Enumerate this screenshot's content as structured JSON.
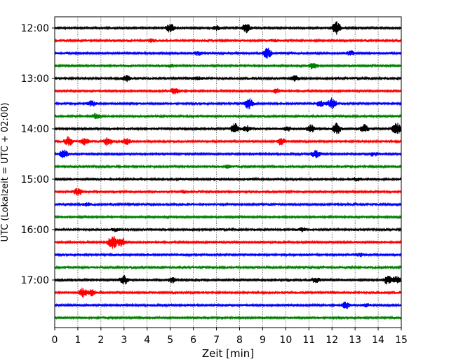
{
  "chart_data": {
    "type": "line",
    "subtype": "helicorder",
    "xlabel": "Zeit  [min]",
    "ylabel": "UTC (Lokalzeit = UTC + 02:00)",
    "xlim": [
      0,
      15
    ],
    "x_ticks": [
      0,
      1,
      2,
      3,
      4,
      5,
      6,
      7,
      8,
      9,
      10,
      11,
      12,
      13,
      14,
      15
    ],
    "y_ticks": [
      "12:00",
      "13:00",
      "14:00",
      "15:00",
      "16:00",
      "17:00"
    ],
    "trace_interval_min": 15,
    "trace_count": 24,
    "first_trace_time": "12:00",
    "grid_x": true,
    "colors": [
      "#000000",
      "#ff0000",
      "#0000ff",
      "#008000"
    ],
    "traces": [
      {
        "start": "12:00",
        "events": [
          [
            5.0,
            0.6
          ],
          [
            8.3,
            0.7
          ],
          [
            12.2,
            1.0
          ],
          [
            7.0,
            0.3
          ]
        ]
      },
      {
        "start": "12:15",
        "events": [
          [
            4.2,
            0.2
          ],
          [
            9.5,
            0.2
          ]
        ]
      },
      {
        "start": "12:30",
        "events": [
          [
            9.2,
            0.8
          ],
          [
            6.2,
            0.3
          ],
          [
            12.8,
            0.3
          ]
        ]
      },
      {
        "start": "12:45",
        "events": [
          [
            11.2,
            0.5
          ],
          [
            5.0,
            0.2
          ]
        ]
      },
      {
        "start": "13:00",
        "events": [
          [
            3.1,
            0.4
          ],
          [
            10.4,
            0.4
          ],
          [
            6.2,
            0.2
          ]
        ]
      },
      {
        "start": "13:15",
        "events": [
          [
            5.2,
            0.5
          ],
          [
            9.6,
            0.3
          ]
        ]
      },
      {
        "start": "13:30",
        "events": [
          [
            1.6,
            0.4
          ],
          [
            8.4,
            0.8
          ],
          [
            12.0,
            0.8
          ],
          [
            11.5,
            0.4
          ]
        ]
      },
      {
        "start": "13:45",
        "events": [
          [
            1.8,
            0.4
          ]
        ]
      },
      {
        "start": "14:00",
        "events": [
          [
            7.8,
            0.8
          ],
          [
            8.3,
            0.4
          ],
          [
            11.1,
            0.6
          ],
          [
            12.2,
            0.8
          ],
          [
            13.4,
            0.6
          ],
          [
            14.8,
            1.0
          ],
          [
            10.1,
            0.3
          ]
        ]
      },
      {
        "start": "14:15",
        "events": [
          [
            0.6,
            0.7
          ],
          [
            1.3,
            0.5
          ],
          [
            2.3,
            0.6
          ],
          [
            3.1,
            0.4
          ],
          [
            9.8,
            0.5
          ]
        ]
      },
      {
        "start": "14:30",
        "events": [
          [
            0.4,
            0.6
          ],
          [
            11.3,
            0.6
          ],
          [
            13.8,
            0.3
          ]
        ]
      },
      {
        "start": "14:45",
        "events": [
          [
            7.5,
            0.2
          ]
        ]
      },
      {
        "start": "15:00",
        "events": [
          [
            13.1,
            0.2
          ]
        ]
      },
      {
        "start": "15:15",
        "events": [
          [
            1.0,
            0.5
          ],
          [
            5.6,
            0.2
          ]
        ]
      },
      {
        "start": "15:30",
        "events": [
          [
            1.4,
            0.2
          ]
        ]
      },
      {
        "start": "15:45",
        "events": []
      },
      {
        "start": "16:00",
        "events": [
          [
            10.7,
            0.3
          ],
          [
            2.6,
            0.2
          ]
        ]
      },
      {
        "start": "16:15",
        "events": [
          [
            2.5,
            1.2
          ],
          [
            2.9,
            0.7
          ]
        ]
      },
      {
        "start": "16:30",
        "events": [
          [
            13.2,
            0.2
          ]
        ]
      },
      {
        "start": "16:45",
        "events": []
      },
      {
        "start": "17:00",
        "events": [
          [
            3.0,
            0.6
          ],
          [
            5.1,
            0.4
          ],
          [
            11.3,
            0.4
          ],
          [
            14.4,
            0.6
          ],
          [
            14.8,
            0.5
          ]
        ]
      },
      {
        "start": "17:15",
        "events": [
          [
            1.2,
            0.7
          ],
          [
            1.6,
            0.5
          ]
        ]
      },
      {
        "start": "17:30",
        "events": [
          [
            12.6,
            0.5
          ],
          [
            13.5,
            0.2
          ]
        ]
      },
      {
        "start": "17:45",
        "events": []
      }
    ]
  }
}
